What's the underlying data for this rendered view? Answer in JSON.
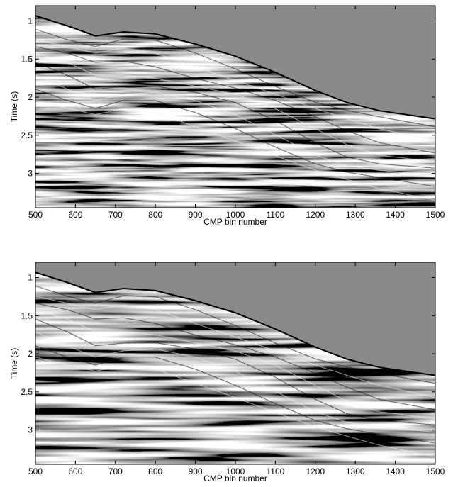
{
  "chart_data": [
    {
      "type": "image",
      "xlabel": "CMP bin number",
      "ylabel": "Time (s)",
      "xlim": [
        500,
        1500
      ],
      "ylim": [
        0.8,
        3.45
      ],
      "y_inverted": true,
      "xticks": [
        500,
        600,
        700,
        800,
        900,
        1000,
        1100,
        1200,
        1300,
        1400,
        1500
      ],
      "yticks": [
        1,
        1.5,
        2,
        2.5,
        3
      ]
    },
    {
      "type": "image",
      "xlabel": "CMP bin number",
      "ylabel": "Time (s)",
      "xlim": [
        500,
        1500
      ],
      "ylim": [
        0.8,
        3.45
      ],
      "y_inverted": true,
      "xticks": [
        500,
        600,
        700,
        800,
        900,
        1000,
        1100,
        1200,
        1300,
        1400,
        1500
      ],
      "yticks": [
        1,
        1.5,
        2,
        2.5,
        3
      ]
    }
  ]
}
